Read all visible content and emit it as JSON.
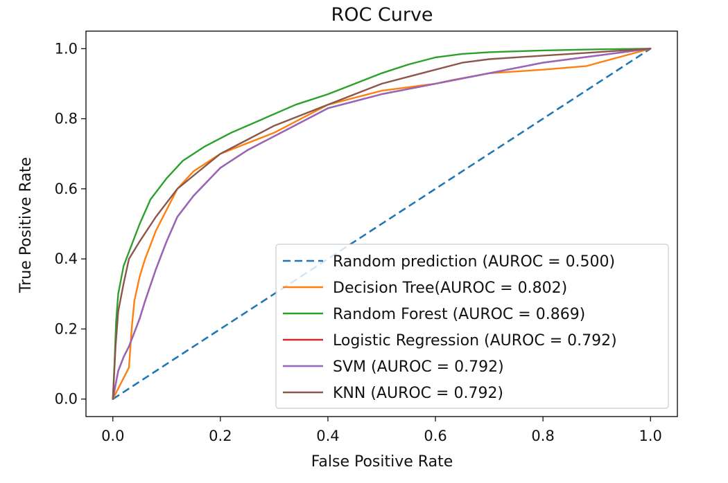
{
  "chart_data": {
    "type": "line",
    "title": "ROC Curve",
    "xlabel": "False Positive Rate",
    "ylabel": "True Positive Rate",
    "xlim": [
      -0.05,
      1.05
    ],
    "ylim": [
      -0.05,
      1.05
    ],
    "xticks": [
      0.0,
      0.2,
      0.4,
      0.6,
      0.8,
      1.0
    ],
    "yticks": [
      0.0,
      0.2,
      0.4,
      0.6,
      0.8,
      1.0
    ],
    "xtick_labels": [
      "0.0",
      "0.2",
      "0.4",
      "0.6",
      "0.8",
      "1.0"
    ],
    "ytick_labels": [
      "0.0",
      "0.2",
      "0.4",
      "0.6",
      "0.8",
      "1.0"
    ],
    "grid": false,
    "legend_position": "lower-right",
    "series": [
      {
        "name": "Random prediction (AUROC = 0.500)",
        "color": "#1f77b4",
        "dashed": true,
        "points": [
          [
            0,
            0
          ],
          [
            1,
            1
          ]
        ]
      },
      {
        "name": "Decision Tree(AUROC = 0.802)",
        "color": "#ff7f0e",
        "dashed": false,
        "points": [
          [
            0,
            0
          ],
          [
            0.01,
            0.03
          ],
          [
            0.02,
            0.06
          ],
          [
            0.03,
            0.09
          ],
          [
            0.035,
            0.2
          ],
          [
            0.04,
            0.28
          ],
          [
            0.05,
            0.35
          ],
          [
            0.06,
            0.4
          ],
          [
            0.07,
            0.44
          ],
          [
            0.08,
            0.48
          ],
          [
            0.1,
            0.54
          ],
          [
            0.12,
            0.6
          ],
          [
            0.15,
            0.65
          ],
          [
            0.2,
            0.7
          ],
          [
            0.25,
            0.73
          ],
          [
            0.3,
            0.76
          ],
          [
            0.35,
            0.8
          ],
          [
            0.4,
            0.84
          ],
          [
            0.5,
            0.88
          ],
          [
            0.6,
            0.9
          ],
          [
            0.63,
            0.91
          ],
          [
            0.7,
            0.93
          ],
          [
            0.8,
            0.94
          ],
          [
            0.88,
            0.95
          ],
          [
            1.0,
            1.0
          ]
        ]
      },
      {
        "name": "Random Forest (AUROC = 0.869)",
        "color": "#2ca02c",
        "dashed": false,
        "points": [
          [
            0,
            0
          ],
          [
            0.003,
            0.1
          ],
          [
            0.006,
            0.22
          ],
          [
            0.01,
            0.3
          ],
          [
            0.02,
            0.38
          ],
          [
            0.03,
            0.42
          ],
          [
            0.05,
            0.5
          ],
          [
            0.07,
            0.57
          ],
          [
            0.1,
            0.63
          ],
          [
            0.13,
            0.68
          ],
          [
            0.17,
            0.72
          ],
          [
            0.22,
            0.76
          ],
          [
            0.28,
            0.8
          ],
          [
            0.34,
            0.84
          ],
          [
            0.4,
            0.87
          ],
          [
            0.45,
            0.9
          ],
          [
            0.5,
            0.93
          ],
          [
            0.55,
            0.955
          ],
          [
            0.6,
            0.975
          ],
          [
            0.65,
            0.985
          ],
          [
            0.7,
            0.99
          ],
          [
            0.8,
            0.995
          ],
          [
            0.9,
            0.998
          ],
          [
            1.0,
            1.0
          ]
        ]
      },
      {
        "name": "Logistic Regression (AUROC = 0.792)",
        "color": "#d62728",
        "dashed": false,
        "points": [
          [
            0,
            0
          ],
          [
            0.01,
            0.08
          ],
          [
            0.02,
            0.12
          ],
          [
            0.03,
            0.15
          ],
          [
            0.04,
            0.19
          ],
          [
            0.05,
            0.23
          ],
          [
            0.06,
            0.28
          ],
          [
            0.08,
            0.37
          ],
          [
            0.1,
            0.45
          ],
          [
            0.12,
            0.52
          ],
          [
            0.15,
            0.58
          ],
          [
            0.2,
            0.66
          ],
          [
            0.25,
            0.71
          ],
          [
            0.3,
            0.75
          ],
          [
            0.35,
            0.79
          ],
          [
            0.4,
            0.83
          ],
          [
            0.5,
            0.87
          ],
          [
            0.6,
            0.9
          ],
          [
            0.7,
            0.93
          ],
          [
            0.8,
            0.96
          ],
          [
            0.9,
            0.98
          ],
          [
            1.0,
            1.0
          ]
        ]
      },
      {
        "name": "SVM (AUROC = 0.792)",
        "color": "#9467bd",
        "dashed": false,
        "points": [
          [
            0,
            0
          ],
          [
            0.01,
            0.08
          ],
          [
            0.02,
            0.12
          ],
          [
            0.03,
            0.15
          ],
          [
            0.04,
            0.19
          ],
          [
            0.05,
            0.23
          ],
          [
            0.06,
            0.28
          ],
          [
            0.08,
            0.37
          ],
          [
            0.1,
            0.45
          ],
          [
            0.12,
            0.52
          ],
          [
            0.15,
            0.58
          ],
          [
            0.2,
            0.66
          ],
          [
            0.25,
            0.71
          ],
          [
            0.3,
            0.75
          ],
          [
            0.35,
            0.79
          ],
          [
            0.4,
            0.83
          ],
          [
            0.5,
            0.87
          ],
          [
            0.6,
            0.9
          ],
          [
            0.7,
            0.93
          ],
          [
            0.8,
            0.96
          ],
          [
            0.9,
            0.98
          ],
          [
            1.0,
            1.0
          ]
        ]
      },
      {
        "name": "KNN (AUROC = 0.792)",
        "color": "#8c564b",
        "dashed": false,
        "points": [
          [
            0,
            0
          ],
          [
            0.005,
            0.15
          ],
          [
            0.01,
            0.25
          ],
          [
            0.02,
            0.33
          ],
          [
            0.03,
            0.4
          ],
          [
            0.05,
            0.45
          ],
          [
            0.08,
            0.52
          ],
          [
            0.12,
            0.6
          ],
          [
            0.16,
            0.65
          ],
          [
            0.2,
            0.7
          ],
          [
            0.25,
            0.74
          ],
          [
            0.3,
            0.78
          ],
          [
            0.35,
            0.81
          ],
          [
            0.4,
            0.84
          ],
          [
            0.45,
            0.87
          ],
          [
            0.5,
            0.9
          ],
          [
            0.55,
            0.92
          ],
          [
            0.6,
            0.94
          ],
          [
            0.65,
            0.96
          ],
          [
            0.7,
            0.97
          ],
          [
            0.8,
            0.98
          ],
          [
            0.9,
            0.99
          ],
          [
            1.0,
            1.0
          ]
        ]
      }
    ]
  }
}
